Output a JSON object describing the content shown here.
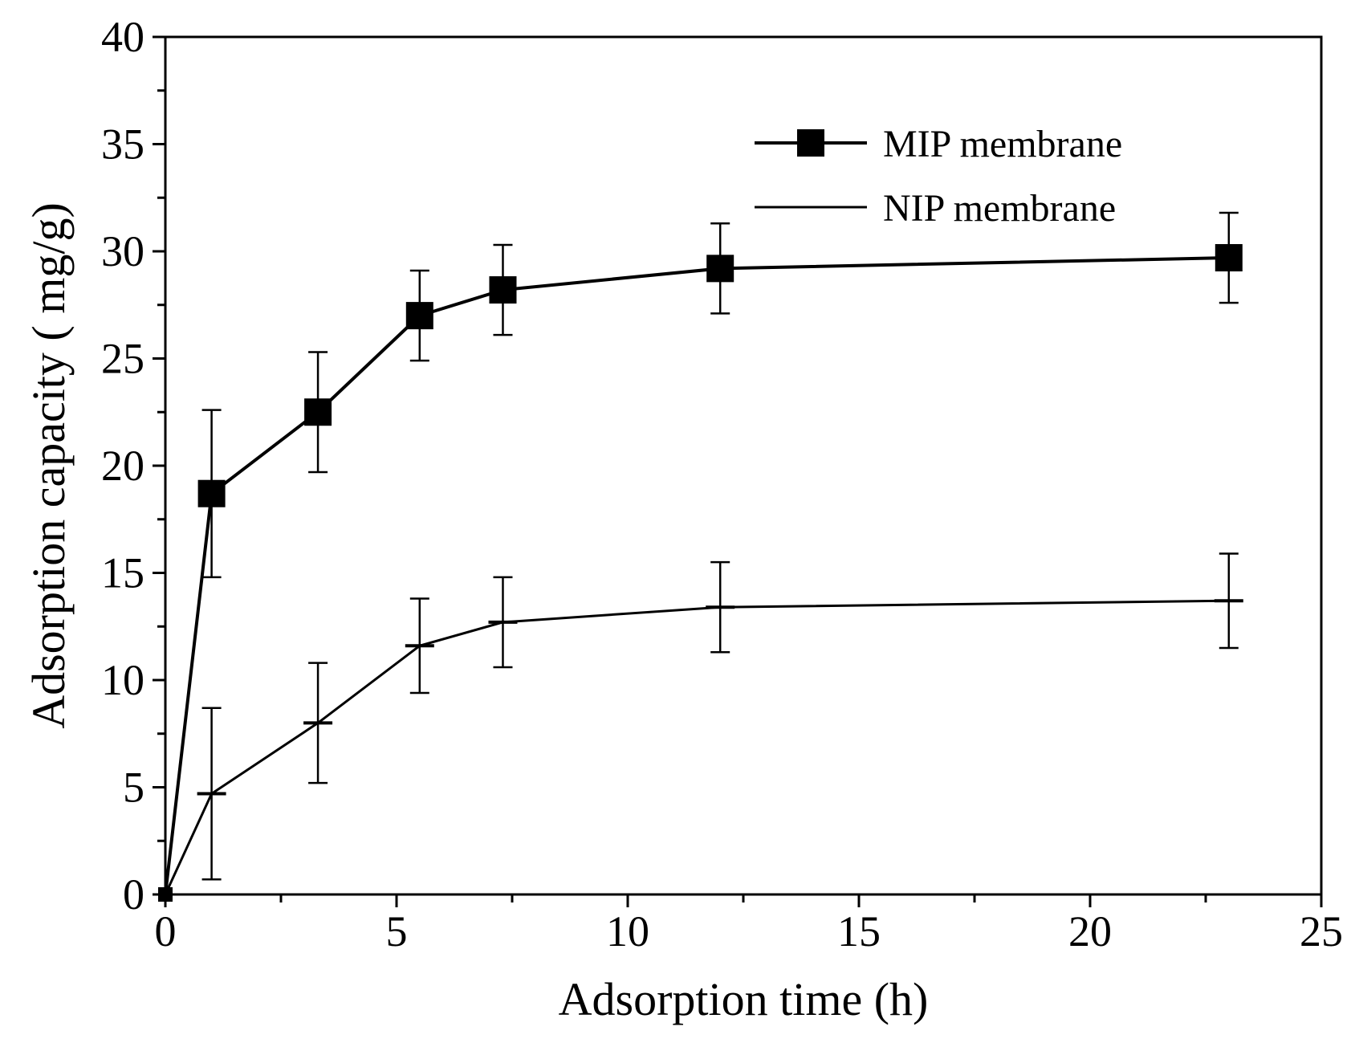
{
  "chart_data": {
    "type": "line",
    "title": "",
    "xlabel": "Adsorption time (h)",
    "ylabel": "Adsorption capacity ( mg/g)",
    "xlim": [
      0,
      25
    ],
    "ylim": [
      0,
      40
    ],
    "xticks": [
      0,
      5,
      10,
      15,
      20,
      25
    ],
    "yticks": [
      0,
      5,
      10,
      15,
      20,
      25,
      30,
      35,
      40
    ],
    "grid": false,
    "legend_position": "top-right",
    "series": [
      {
        "name": "MIP membrane",
        "marker": "square",
        "color": "#000000",
        "x": [
          0,
          1,
          3.3,
          5.5,
          7.3,
          12,
          23
        ],
        "y": [
          0,
          18.7,
          22.5,
          27.0,
          28.2,
          29.2,
          29.7
        ],
        "error": [
          0,
          3.9,
          2.8,
          2.1,
          2.1,
          2.1,
          2.1
        ]
      },
      {
        "name": "NIP membrane",
        "marker": "dash",
        "color": "#000000",
        "x": [
          0,
          1,
          3.3,
          5.5,
          7.3,
          12,
          23
        ],
        "y": [
          0,
          4.7,
          8.0,
          11.6,
          12.7,
          13.4,
          13.7
        ],
        "error": [
          0,
          4.0,
          2.8,
          2.2,
          2.1,
          2.1,
          2.2
        ]
      }
    ]
  }
}
